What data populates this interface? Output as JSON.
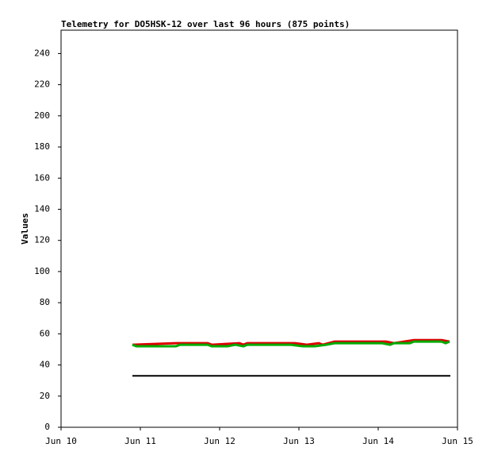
{
  "chart_data": {
    "type": "line",
    "title": "Telemetry for DO5HSK-12 over last 96 hours (875 points)",
    "y_label": "Values",
    "xlim": [
      10,
      15
    ],
    "xticks": [
      {
        "value": 10,
        "label": "Jun 10"
      },
      {
        "value": 11,
        "label": "Jun 11"
      },
      {
        "value": 12,
        "label": "Jun 12"
      },
      {
        "value": 13,
        "label": "Jun 13"
      },
      {
        "value": 14,
        "label": "Jun 14"
      },
      {
        "value": 15,
        "label": "Jun 15"
      }
    ],
    "ylim": [
      0,
      255
    ],
    "yticks": [
      0,
      20,
      40,
      60,
      80,
      100,
      120,
      140,
      160,
      180,
      200,
      220,
      240
    ],
    "grid": false,
    "series": [
      {
        "color": "#dd0000",
        "x": [
          10.9,
          11.45,
          11.85,
          11.9,
          12.25,
          12.3,
          12.35,
          12.95,
          13.1,
          13.25,
          13.3,
          13.45,
          14.1,
          14.2,
          14.45,
          14.8,
          14.9
        ],
        "values": [
          53,
          54,
          54,
          53,
          54,
          53,
          54,
          54,
          53,
          54,
          53,
          55,
          55,
          54,
          56,
          56,
          55
        ]
      },
      {
        "color": "#00aa00",
        "x": [
          10.9,
          10.95,
          11.2,
          11.45,
          11.5,
          11.85,
          11.9,
          12.1,
          12.2,
          12.3,
          12.35,
          12.9,
          13.05,
          13.2,
          13.35,
          13.45,
          13.9,
          14.05,
          14.15,
          14.2,
          14.4,
          14.45,
          14.8,
          14.85,
          14.9
        ],
        "values": [
          53,
          52,
          52,
          52,
          53,
          53,
          52,
          52,
          53,
          52,
          53,
          53,
          52,
          52,
          53,
          54,
          54,
          54,
          53,
          54,
          54,
          55,
          55,
          54,
          55
        ]
      },
      {
        "color": "#000000",
        "x": [
          10.9,
          14.91
        ],
        "values": [
          33,
          33
        ]
      }
    ]
  }
}
